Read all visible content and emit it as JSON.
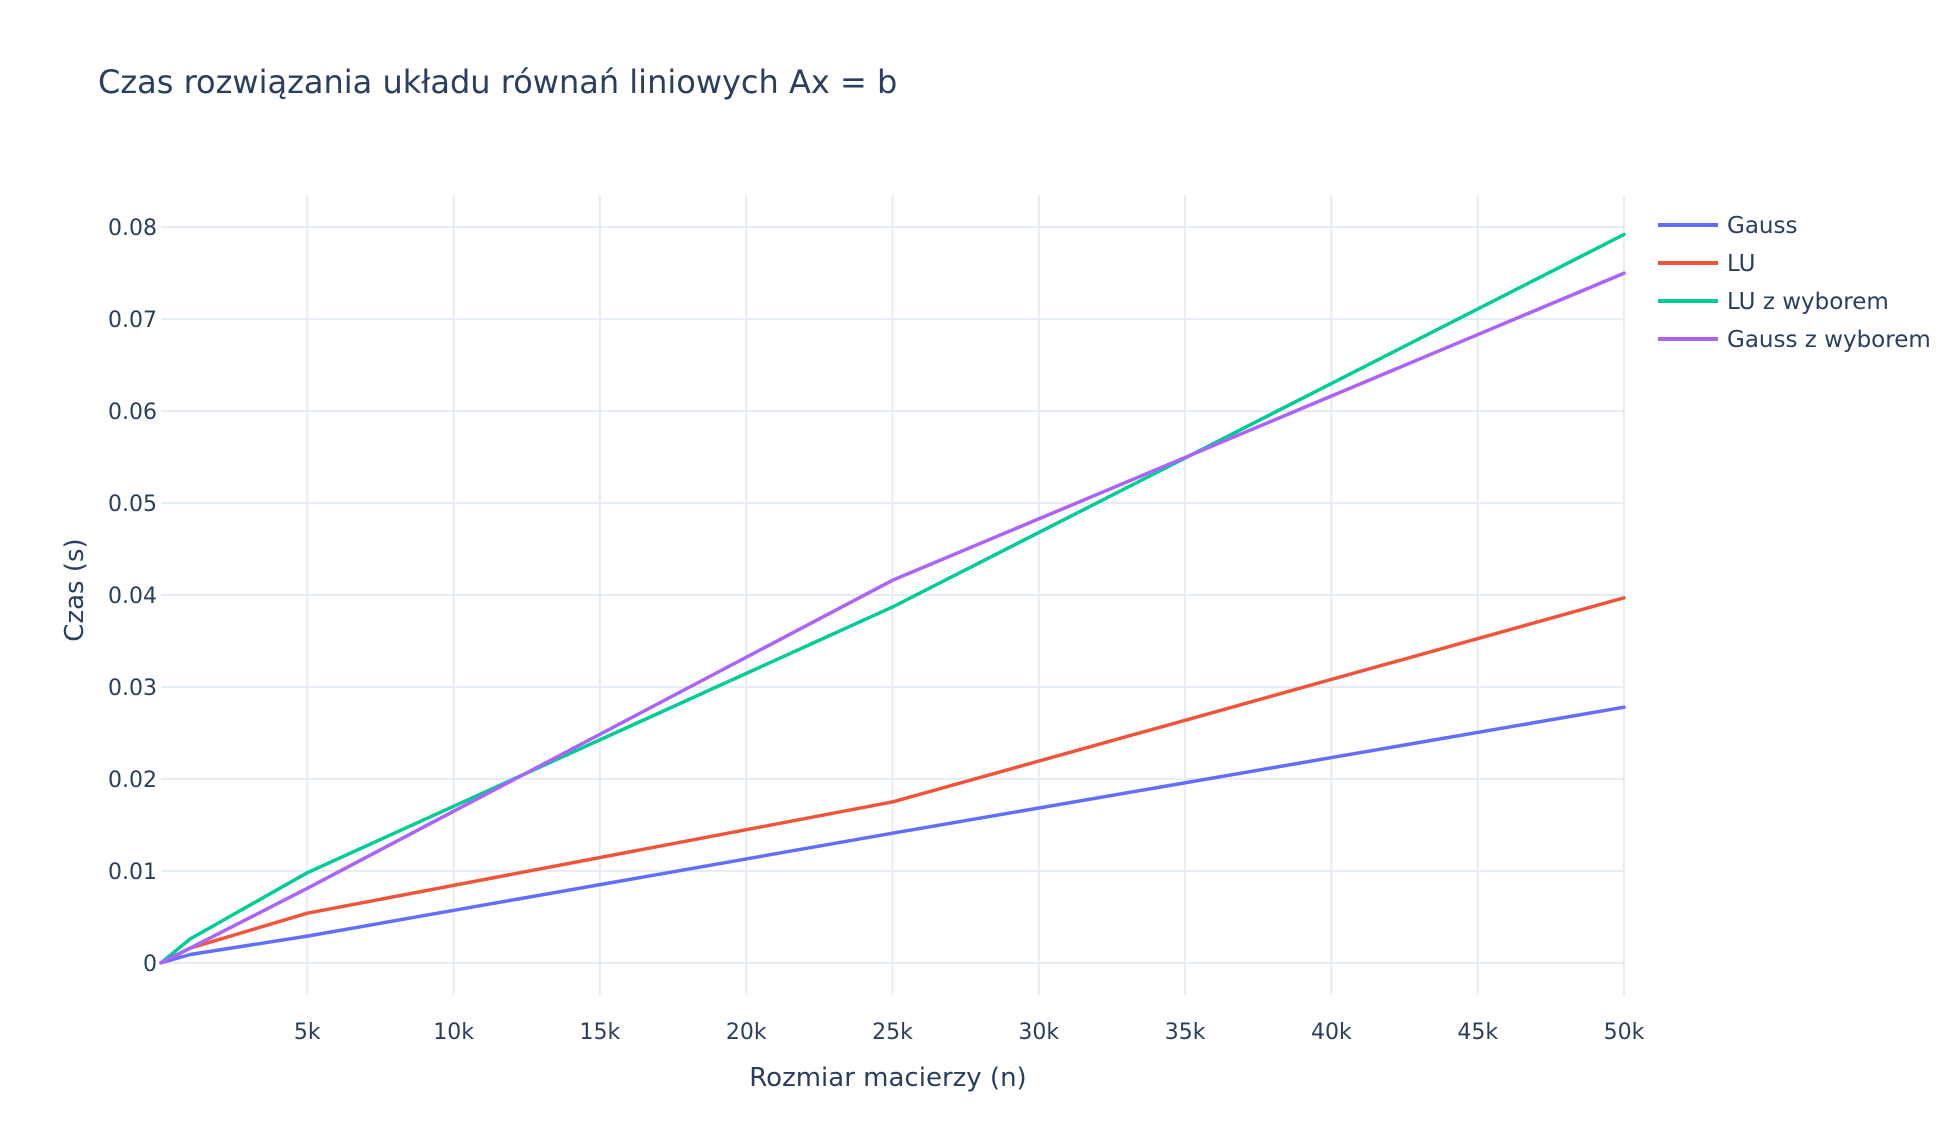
{
  "chart_data": {
    "type": "line",
    "title": "Czas rozwiązania układu równań liniowych Ax = b",
    "xlabel": "Rozmiar macierzy (n)",
    "ylabel": "Czas (s)",
    "xlim": [
      0,
      50000
    ],
    "ylim": [
      -0.0035,
      0.0835
    ],
    "xticks": [
      {
        "value": 5000,
        "label": "5k"
      },
      {
        "value": 10000,
        "label": "10k"
      },
      {
        "value": 15000,
        "label": "15k"
      },
      {
        "value": 20000,
        "label": "20k"
      },
      {
        "value": 25000,
        "label": "25k"
      },
      {
        "value": 30000,
        "label": "30k"
      },
      {
        "value": 35000,
        "label": "35k"
      },
      {
        "value": 40000,
        "label": "40k"
      },
      {
        "value": 45000,
        "label": "45k"
      },
      {
        "value": 50000,
        "label": "50k"
      }
    ],
    "yticks": [
      {
        "value": 0,
        "label": "0"
      },
      {
        "value": 0.01,
        "label": "0.01"
      },
      {
        "value": 0.02,
        "label": "0.02"
      },
      {
        "value": 0.03,
        "label": "0.03"
      },
      {
        "value": 0.04,
        "label": "0.04"
      },
      {
        "value": 0.05,
        "label": "0.05"
      },
      {
        "value": 0.06,
        "label": "0.06"
      },
      {
        "value": 0.07,
        "label": "0.07"
      },
      {
        "value": 0.08,
        "label": "0.08"
      }
    ],
    "grid": true,
    "legend_position": "top-right",
    "x": [
      0,
      1000,
      5000,
      25000,
      50000
    ],
    "series": [
      {
        "name": "Gauss",
        "color": "#636efa",
        "values": [
          0,
          0.0009,
          0.0029,
          0.0141,
          0.0278
        ]
      },
      {
        "name": "LU",
        "color": "#ef553b",
        "values": [
          0,
          0.0016,
          0.0054,
          0.0175,
          0.0397
        ]
      },
      {
        "name": "LU z wyborem",
        "color": "#00cc96",
        "values": [
          0,
          0.0026,
          0.0098,
          0.0387,
          0.0792
        ]
      },
      {
        "name": "Gauss z wyborem",
        "color": "#ab63fa",
        "values": [
          0,
          0.0016,
          0.0081,
          0.0416,
          0.075
        ]
      }
    ]
  }
}
